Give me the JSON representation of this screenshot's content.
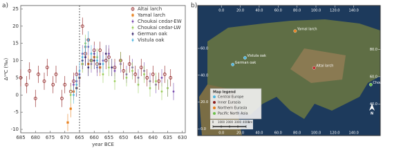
{
  "chart_data": [
    {
      "type": "scatter",
      "panel": "a)",
      "xlabel": "year  BCE",
      "ylabel": "Δ¹⁴C (‰)",
      "xlim": [
        685,
        629
      ],
      "xticks": [
        685,
        680,
        675,
        670,
        665,
        660,
        655,
        650,
        645,
        640,
        635,
        630
      ],
      "ylim": [
        -11,
        26
      ],
      "yticks": [
        -10,
        -5,
        0,
        5,
        10,
        15,
        20,
        25
      ],
      "vline": 665,
      "series": [
        {
          "name": "Altai larch",
          "color": "#8b1a1a",
          "marker": "circle-open",
          "error": 2.5,
          "x": [
            685,
            683,
            682,
            680,
            679,
            677,
            676,
            674,
            673,
            671,
            670,
            668,
            667,
            666,
            664,
            663,
            662,
            661,
            660,
            659,
            658,
            656,
            655,
            653,
            651,
            650,
            648,
            646,
            644,
            642,
            640,
            638,
            636,
            634
          ],
          "values": [
            5,
            3,
            7,
            -1,
            6,
            4,
            8,
            3,
            6,
            -1,
            3,
            1,
            4,
            6,
            20,
            12,
            16,
            10,
            13,
            9,
            13,
            10,
            11,
            8,
            10,
            7,
            9,
            6,
            8,
            5,
            6,
            4,
            6,
            5
          ]
        },
        {
          "name": "Yamal larch",
          "color": "#e8801e",
          "marker": "square",
          "error": 2.5,
          "x": [
            669,
            668,
            667,
            666,
            665,
            664,
            663,
            662,
            660,
            658
          ],
          "values": [
            -8,
            -4,
            1,
            2,
            5,
            9,
            14,
            9,
            11,
            8
          ]
        },
        {
          "name": "Choukai cedar-EW",
          "color": "#7b4fb0",
          "marker": "dot",
          "error": 2.5,
          "x": [
            667,
            666,
            665,
            664,
            663,
            662,
            661,
            660,
            659,
            657,
            655,
            653,
            651,
            649,
            647,
            645,
            643,
            641,
            639,
            637,
            635,
            633
          ],
          "values": [
            3,
            4,
            6,
            12,
            11,
            14,
            9,
            12,
            8,
            10,
            12,
            7,
            9,
            6,
            8,
            5,
            7,
            4,
            3,
            5,
            2,
            1
          ]
        },
        {
          "name": "Choukai cedar-LW",
          "color": "#9acd5a",
          "marker": "dot",
          "error": 2.5,
          "x": [
            668,
            666,
            664,
            663,
            661,
            659,
            657,
            655,
            653,
            651,
            649,
            647,
            645,
            643,
            641,
            639,
            637,
            635
          ],
          "values": [
            0,
            3,
            9,
            15,
            10,
            11,
            6,
            8,
            4,
            10,
            5,
            7,
            3,
            6,
            2,
            4,
            1,
            2
          ]
        },
        {
          "name": "German oak",
          "color": "#3b2a6e",
          "marker": "dot",
          "error": 2.5,
          "x": [
            666,
            665,
            664,
            663,
            662,
            660,
            658,
            656,
            654
          ],
          "values": [
            2,
            5,
            10,
            11,
            8,
            10,
            9,
            12,
            8
          ]
        },
        {
          "name": "Vistula oak",
          "color": "#4fb6e0",
          "marker": "dot",
          "error": 2.5,
          "x": [
            667,
            666,
            665,
            664,
            663,
            662,
            661,
            659,
            657
          ],
          "values": [
            0,
            3,
            7,
            11,
            14,
            16,
            12,
            10,
            9
          ]
        }
      ]
    },
    {
      "type": "map",
      "panel": "b)",
      "xlim": [
        -25,
        168
      ],
      "ylim": [
        -5,
        92
      ],
      "y2lim": [
        17,
        112
      ],
      "xticks": [
        {
          "value": 0,
          "label": "0.0"
        },
        {
          "value": 20,
          "label": "20.0"
        },
        {
          "value": 40,
          "label": "40.0"
        },
        {
          "value": 60,
          "label": "60.0"
        },
        {
          "value": 80,
          "label": "80.0"
        },
        {
          "value": 100,
          "label": "100.0"
        },
        {
          "value": 120,
          "label": "120.0"
        },
        {
          "value": 140,
          "label": "140.0"
        }
      ],
      "yticks": [
        {
          "value": 0,
          "label": "0.0"
        },
        {
          "value": 20,
          "label": "20.0"
        },
        {
          "value": 40,
          "label": "40.0"
        },
        {
          "value": 60,
          "label": "60.0"
        }
      ],
      "y2ticks": [
        {
          "value": 40,
          "label": "40.0"
        },
        {
          "value": 60,
          "label": "60.0"
        },
        {
          "value": 80,
          "label": "80.0"
        }
      ],
      "sites": [
        {
          "name": "Yamal larch",
          "lon": 78,
          "lat": 73,
          "color": "#e8801e"
        },
        {
          "name": "Vistula oak",
          "lon": 25,
          "lat": 53,
          "color": "#4fb6e0"
        },
        {
          "name": "German oak",
          "lon": 12,
          "lat": 48,
          "color": "#4fb6e0"
        },
        {
          "name": "Altai larch",
          "lon": 98,
          "lat": 45.5,
          "color": "#c0282d"
        },
        {
          "name": "Choukai cedar",
          "lon": 158,
          "lat": 33,
          "color": "#6cc04a"
        }
      ],
      "legend_title": "Map legend",
      "legend": [
        {
          "name": "Central Europe",
          "color": "#4fb6e0"
        },
        {
          "name": "Inner Eurasia",
          "color": "#8b1a1a"
        },
        {
          "name": "Northern Eurasia",
          "color": "#e8801e"
        },
        {
          "name": "Pacific North Asia",
          "color": "#6cc04a"
        }
      ],
      "scale_bar": {
        "ticks": [
          0,
          1000,
          2000,
          3000,
          4000
        ],
        "unit": "km"
      },
      "north": "N"
    }
  ]
}
